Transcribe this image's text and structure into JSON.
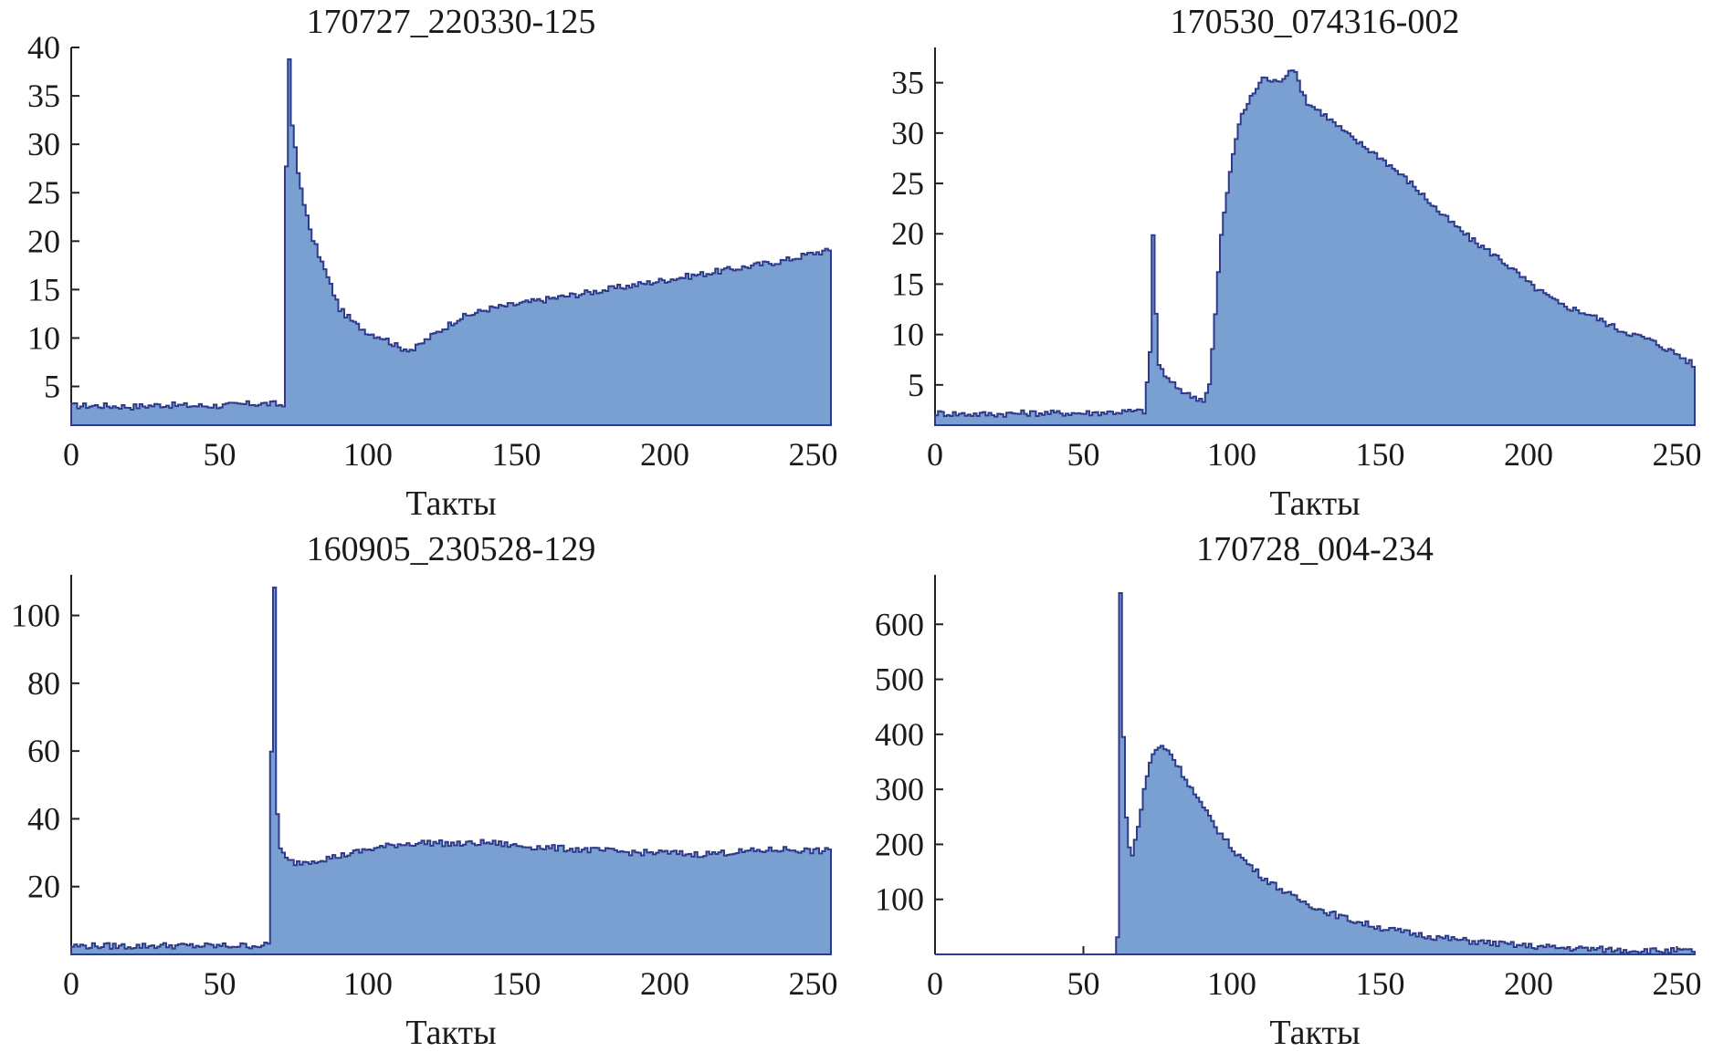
{
  "chart_data": [
    {
      "type": "area",
      "title": "170727_220330-125",
      "xlabel": "Такты",
      "ylabel": "",
      "xlim": [
        0,
        256
      ],
      "ylim": [
        1,
        40
      ],
      "xticks": [
        0,
        50,
        100,
        150,
        200,
        250
      ],
      "yticks": [
        5,
        10,
        15,
        20,
        25,
        30,
        35,
        40
      ],
      "grid": false,
      "fill_color": "#7a9fd1",
      "line_color": "#2e3a8c",
      "series": [
        {
          "x": [
            0,
            10,
            20,
            30,
            40,
            50,
            60,
            68,
            71,
            72,
            73,
            74,
            76,
            78,
            80,
            85,
            90,
            95,
            100,
            105,
            110,
            115,
            120,
            125,
            130,
            140,
            150,
            160,
            170,
            180,
            190,
            200,
            210,
            220,
            230,
            240,
            250,
            255
          ],
          "values": [
            3,
            3,
            2.9,
            3.1,
            3,
            3,
            3.2,
            3.2,
            3,
            28,
            38.5,
            32,
            27,
            24,
            21,
            17,
            13,
            11.5,
            10.5,
            10,
            9,
            8.8,
            10,
            11,
            12,
            13,
            13.5,
            14,
            14.5,
            15,
            15.5,
            16,
            16.5,
            17,
            17.5,
            18,
            18.8,
            19
          ]
        }
      ]
    },
    {
      "type": "area",
      "title": "170530_074316-002",
      "xlabel": "Такты",
      "ylabel": "",
      "xlim": [
        0,
        256
      ],
      "ylim": [
        1,
        38.5
      ],
      "xticks": [
        0,
        50,
        100,
        150,
        200,
        250
      ],
      "yticks": [
        5,
        10,
        15,
        20,
        25,
        30,
        35
      ],
      "grid": false,
      "fill_color": "#7a9fd1",
      "line_color": "#2e3a8c",
      "series": [
        {
          "x": [
            0,
            10,
            20,
            30,
            40,
            50,
            60,
            70,
            72,
            73,
            74,
            75,
            76,
            78,
            80,
            85,
            90,
            92,
            94,
            96,
            98,
            100,
            102,
            105,
            110,
            115,
            120,
            125,
            130,
            140,
            150,
            160,
            170,
            180,
            190,
            200,
            210,
            220,
            230,
            240,
            250,
            255
          ],
          "values": [
            2.2,
            2.1,
            2.1,
            2.2,
            2.2,
            2.2,
            2.3,
            2.4,
            8,
            20,
            12,
            7,
            6.5,
            5.5,
            5,
            4,
            3.5,
            5,
            12,
            20,
            24,
            28,
            31,
            33,
            35.5,
            35,
            36.5,
            33,
            32,
            29.5,
            27.5,
            25,
            22,
            19.5,
            17.5,
            15,
            13,
            12,
            10.5,
            9.5,
            8,
            7
          ]
        }
      ]
    },
    {
      "type": "area",
      "title": "160905_230528-129",
      "xlabel": "Такты",
      "ylabel": "",
      "xlim": [
        0,
        256
      ],
      "ylim": [
        0,
        112
      ],
      "xticks": [
        0,
        50,
        100,
        150,
        200,
        250
      ],
      "yticks": [
        20,
        40,
        60,
        80,
        100
      ],
      "grid": false,
      "fill_color": "#7a9fd1",
      "line_color": "#2e3a8c",
      "series": [
        {
          "x": [
            0,
            10,
            20,
            30,
            40,
            50,
            60,
            66,
            67,
            68,
            69,
            70,
            72,
            75,
            80,
            90,
            100,
            110,
            120,
            130,
            140,
            150,
            160,
            170,
            180,
            190,
            200,
            210,
            220,
            230,
            240,
            250,
            255
          ],
          "values": [
            2.5,
            2.5,
            2.4,
            2.6,
            2.5,
            2.5,
            2.6,
            2.7,
            60,
            108,
            42,
            31,
            28,
            27,
            27.5,
            29,
            31,
            32.5,
            33,
            32.5,
            33,
            32,
            31.5,
            31,
            30.5,
            30,
            30,
            29.5,
            30,
            30.5,
            31,
            30.5,
            30.5
          ]
        }
      ]
    },
    {
      "type": "area",
      "title": "170728_004-234",
      "xlabel": "Такты",
      "ylabel": "",
      "xlim": [
        0,
        256
      ],
      "ylim": [
        0,
        690
      ],
      "xticks": [
        0,
        50,
        100,
        150,
        200,
        250
      ],
      "yticks": [
        100,
        200,
        300,
        400,
        500,
        600
      ],
      "grid": false,
      "fill_color": "#7a9fd1",
      "line_color": "#2e3a8c",
      "series": [
        {
          "x": [
            0,
            10,
            20,
            30,
            40,
            50,
            60,
            61,
            62,
            63,
            64,
            65,
            66,
            68,
            70,
            72,
            74,
            76,
            78,
            80,
            85,
            90,
            95,
            100,
            110,
            120,
            130,
            140,
            150,
            160,
            170,
            180,
            190,
            200,
            210,
            220,
            230,
            240,
            250,
            255
          ],
          "values": [
            0,
            0,
            0,
            0,
            0,
            0,
            0,
            30,
            655,
            400,
            250,
            190,
            185,
            230,
            300,
            350,
            372,
            378,
            372,
            355,
            310,
            265,
            225,
            190,
            140,
            105,
            80,
            62,
            48,
            38,
            30,
            24,
            19,
            15,
            12,
            10,
            8,
            7,
            6,
            6
          ]
        }
      ]
    }
  ]
}
